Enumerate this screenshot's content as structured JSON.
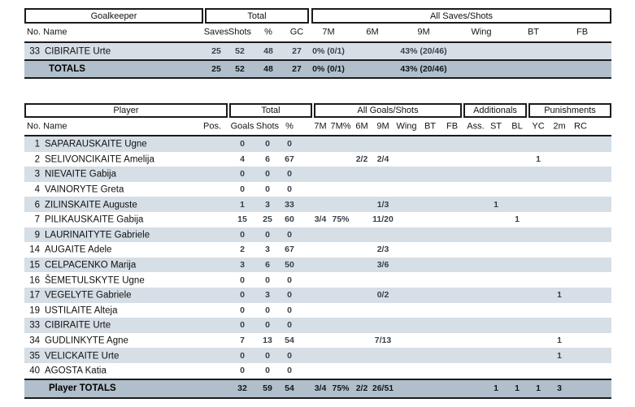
{
  "colors": {
    "row_shaded": "#d6dee6",
    "totals_background": "#b0bfcb",
    "border": "#1b1b1b",
    "name_text": "#101010",
    "number_text": "#38414b"
  },
  "goalkeeper_table": {
    "group_headers": [
      "Goalkeeper",
      "Total",
      "All Saves/Shots"
    ],
    "sub_headers": [
      "No. Name",
      "Saves",
      "Shots",
      "%",
      "GC",
      "7M",
      "6M",
      "9M",
      "Wing",
      "BT",
      "FB"
    ],
    "rows": [
      {
        "no": "33",
        "name": "CIBIRAITE Urte",
        "saves": "25",
        "shots": "52",
        "pct": "48",
        "gc": "27",
        "m7": "0% (0/1)",
        "m9": "43% (20/46)"
      }
    ],
    "totals": {
      "label": "TOTALS",
      "saves": "25",
      "shots": "52",
      "pct": "48",
      "gc": "27",
      "m7": "0% (0/1)",
      "m9": "43% (20/46)"
    }
  },
  "player_table": {
    "group_headers": [
      "Player",
      "Total",
      "All Goals/Shots",
      "Additionals",
      "Punishments"
    ],
    "sub_headers": [
      "No. Name",
      "Pos.",
      "Goals",
      "Shots",
      "%",
      "7M",
      "7M%",
      "6M",
      "9M",
      "Wing",
      "BT",
      "FB",
      "Ass.",
      "ST",
      "BL",
      "YC",
      "2m",
      "RC"
    ],
    "rows": [
      {
        "no": "1",
        "name": "SAPARAUSKAITE Ugne",
        "goals": "0",
        "shots": "0",
        "pct": "0"
      },
      {
        "no": "2",
        "name": "SELIVONCIKAITE Amelija",
        "goals": "4",
        "shots": "6",
        "pct": "67",
        "m6": "2/2",
        "m9": "2/4",
        "yc": "1"
      },
      {
        "no": "3",
        "name": "NIEVAITE Gabija",
        "goals": "0",
        "shots": "0",
        "pct": "0"
      },
      {
        "no": "4",
        "name": "VAINORYTE Greta",
        "goals": "0",
        "shots": "0",
        "pct": "0"
      },
      {
        "no": "6",
        "name": "ZILINSKAITE Auguste",
        "goals": "1",
        "shots": "3",
        "pct": "33",
        "m9": "1/3",
        "st": "1"
      },
      {
        "no": "7",
        "name": "PILIKAUSKAITE Gabija",
        "goals": "15",
        "shots": "25",
        "pct": "60",
        "m7": "3/4",
        "m7pct": "75%",
        "m9": "11/20",
        "bl": "1"
      },
      {
        "no": "9",
        "name": "LAURINAITYTE Gabriele",
        "goals": "0",
        "shots": "0",
        "pct": "0"
      },
      {
        "no": "14",
        "name": "AUGAITE Adele",
        "goals": "2",
        "shots": "3",
        "pct": "67",
        "m9": "2/3"
      },
      {
        "no": "15",
        "name": "CELPACENKO Marija",
        "goals": "3",
        "shots": "6",
        "pct": "50",
        "m9": "3/6"
      },
      {
        "no": "16",
        "name": "ŠEMETULSKYTE Ugne",
        "goals": "0",
        "shots": "0",
        "pct": "0"
      },
      {
        "no": "17",
        "name": "VEGELYTE Gabriele",
        "goals": "0",
        "shots": "3",
        "pct": "0",
        "m9": "0/2",
        "m2": "1"
      },
      {
        "no": "19",
        "name": "USTILAITE Alteja",
        "goals": "0",
        "shots": "0",
        "pct": "0"
      },
      {
        "no": "33",
        "name": "CIBIRAITE Urte",
        "goals": "0",
        "shots": "0",
        "pct": "0"
      },
      {
        "no": "34",
        "name": "GUDLINKYTE Agne",
        "goals": "7",
        "shots": "13",
        "pct": "54",
        "m9": "7/13",
        "m2": "1"
      },
      {
        "no": "35",
        "name": "VELICKAITE Urte",
        "goals": "0",
        "shots": "0",
        "pct": "0",
        "m2": "1"
      },
      {
        "no": "40",
        "name": "AGOSTA Katia",
        "goals": "0",
        "shots": "0",
        "pct": "0"
      }
    ],
    "totals": {
      "label": "Player TOTALS",
      "goals": "32",
      "shots": "59",
      "pct": "54",
      "m7": "3/4",
      "m7pct": "75%",
      "m6": "2/2",
      "m9": "26/51",
      "st": "1",
      "bl": "1",
      "yc": "1",
      "m2": "3"
    }
  }
}
